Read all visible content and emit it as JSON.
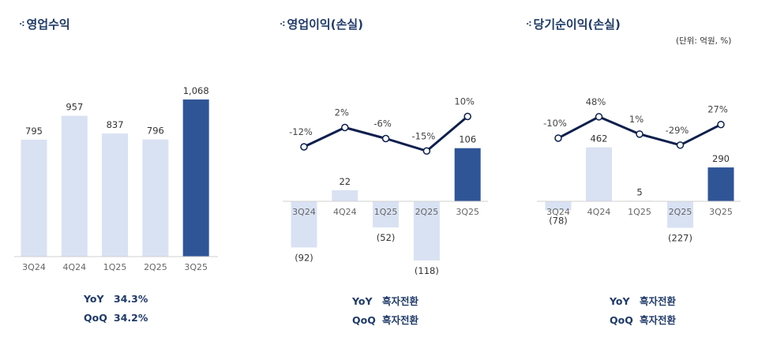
{
  "unit_label": "(단위: 억원, %)",
  "colors": {
    "light_bar": "#d9e2f3",
    "highlight_bar": "#2f5597",
    "line": "#0d1f4d",
    "title": "#1f3a68"
  },
  "chart_data": [
    {
      "type": "bar",
      "title": "영업수익",
      "categories": [
        "3Q24",
        "4Q24",
        "1Q25",
        "2Q25",
        "3Q25"
      ],
      "values": [
        795,
        957,
        837,
        796,
        1068
      ],
      "value_labels": [
        "795",
        "957",
        "837",
        "796",
        "1,068"
      ],
      "highlight_index": 4,
      "footer": [
        {
          "key": "YoY",
          "value": "34.3%"
        },
        {
          "key": "QoQ",
          "value": "34.2%"
        }
      ]
    },
    {
      "type": "bar+line",
      "title": "영업이익(손실)",
      "categories": [
        "3Q24",
        "4Q24",
        "1Q25",
        "2Q25",
        "3Q25"
      ],
      "values": [
        -92,
        22,
        -52,
        -118,
        106
      ],
      "value_labels": [
        "(92)",
        "22",
        "(52)",
        "(118)",
        "106"
      ],
      "margin_pct": [
        -12,
        2,
        -6,
        -15,
        10
      ],
      "margin_labels": [
        "-12%",
        "2%",
        "-6%",
        "-15%",
        "10%"
      ],
      "highlight_index": 4,
      "footer": [
        {
          "key": "YoY",
          "value": "흑자전환"
        },
        {
          "key": "QoQ",
          "value": "흑자전환"
        }
      ]
    },
    {
      "type": "bar+line",
      "title": "당기순이익(손실)",
      "categories": [
        "3Q24",
        "4Q24",
        "1Q25",
        "2Q25",
        "3Q25"
      ],
      "values": [
        -78,
        462,
        5,
        -227,
        290
      ],
      "value_labels": [
        "(78)",
        "462",
        "5",
        "(227)",
        "290"
      ],
      "margin_pct": [
        -10,
        48,
        1,
        -29,
        27
      ],
      "margin_labels": [
        "-10%",
        "48%",
        "1%",
        "-29%",
        "27%"
      ],
      "highlight_index": 4,
      "footer": [
        {
          "key": "YoY",
          "value": "흑자전환"
        },
        {
          "key": "QoQ",
          "value": "흑자전환"
        }
      ]
    }
  ]
}
